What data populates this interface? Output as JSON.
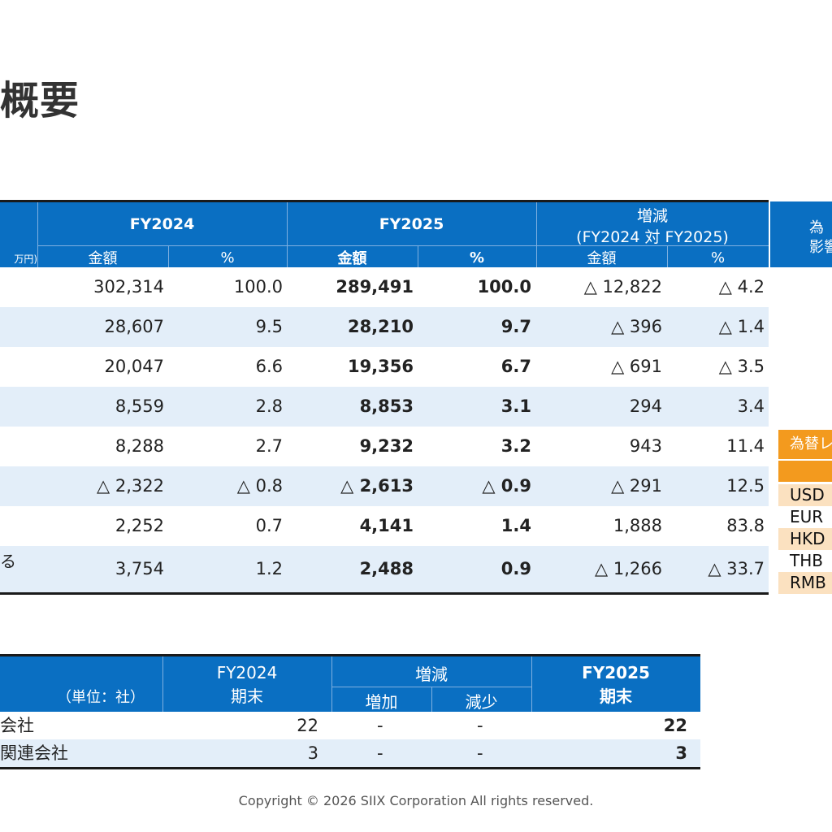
{
  "page_title": "概要",
  "financial_table": {
    "unit_label": "万円)",
    "groups": {
      "fy2024": "FY2024",
      "fy2025": "FY2025",
      "change_line1": "増減",
      "change_line2": "(FY2024 対 FY2025)"
    },
    "subheaders": {
      "amount": "金額",
      "pct": "%"
    },
    "right_header_line1": "為",
    "right_header_line2": "影響",
    "rows": [
      {
        "label": "",
        "fy24_amt": "302,314",
        "fy24_pct": "100.0",
        "fy25_amt": "289,491",
        "fy25_pct": "100.0",
        "chg_amt": "△ 12,822",
        "chg_pct": "△ 4.2"
      },
      {
        "label": "",
        "fy24_amt": "28,607",
        "fy24_pct": "9.5",
        "fy25_amt": "28,210",
        "fy25_pct": "9.7",
        "chg_amt": "△ 396",
        "chg_pct": "△ 1.4"
      },
      {
        "label": "",
        "fy24_amt": "20,047",
        "fy24_pct": "6.6",
        "fy25_amt": "19,356",
        "fy25_pct": "6.7",
        "chg_amt": "△ 691",
        "chg_pct": "△ 3.5"
      },
      {
        "label": "",
        "fy24_amt": "8,559",
        "fy24_pct": "2.8",
        "fy25_amt": "8,853",
        "fy25_pct": "3.1",
        "chg_amt": "294",
        "chg_pct": "3.4"
      },
      {
        "label": "",
        "fy24_amt": "8,288",
        "fy24_pct": "2.7",
        "fy25_amt": "9,232",
        "fy25_pct": "3.2",
        "chg_amt": "943",
        "chg_pct": "11.4"
      },
      {
        "label": "",
        "fy24_amt": "△ 2,322",
        "fy24_pct": "△ 0.8",
        "fy25_amt": "△ 2,613",
        "fy25_pct": "△ 0.9",
        "chg_amt": "△ 291",
        "chg_pct": "12.5"
      },
      {
        "label": "",
        "fy24_amt": "2,252",
        "fy24_pct": "0.7",
        "fy25_amt": "4,141",
        "fy25_pct": "1.4",
        "chg_amt": "1,888",
        "chg_pct": "83.8"
      },
      {
        "label": "る",
        "fy24_amt": "3,754",
        "fy24_pct": "1.2",
        "fy25_amt": "2,488",
        "fy25_pct": "0.9",
        "chg_amt": "△ 1,266",
        "chg_pct": "△ 33.7"
      }
    ]
  },
  "fx_table": {
    "header": "為替レ",
    "currencies": [
      "USD",
      "EUR",
      "HKD",
      "THB",
      "RMB"
    ]
  },
  "company_table": {
    "unit_label": "（単位：社）",
    "fy2024_line1": "FY2024",
    "fy2024_line2": "期末",
    "change": "増減",
    "increase": "増加",
    "decrease": "減少",
    "fy2025_line1": "FY2025",
    "fy2025_line2": "期末",
    "rows": [
      {
        "label": "会社",
        "fy24": "22",
        "inc": "-",
        "dec": "-",
        "fy25": "22"
      },
      {
        "label": "関連会社",
        "fy24": "3",
        "inc": "-",
        "dec": "-",
        "fy25": "3"
      }
    ]
  },
  "footer": "Copyright © 2026 SIIX Corporation All rights reserved."
}
